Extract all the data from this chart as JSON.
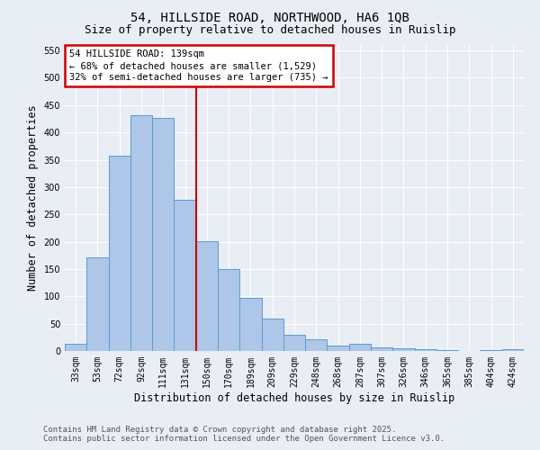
{
  "title_line1": "54, HILLSIDE ROAD, NORTHWOOD, HA6 1QB",
  "title_line2": "Size of property relative to detached houses in Ruislip",
  "xlabel": "Distribution of detached houses by size in Ruislip",
  "ylabel": "Number of detached properties",
  "categories": [
    "33sqm",
    "53sqm",
    "72sqm",
    "92sqm",
    "111sqm",
    "131sqm",
    "150sqm",
    "170sqm",
    "189sqm",
    "209sqm",
    "229sqm",
    "248sqm",
    "268sqm",
    "287sqm",
    "307sqm",
    "326sqm",
    "346sqm",
    "365sqm",
    "385sqm",
    "404sqm",
    "424sqm"
  ],
  "values": [
    14,
    172,
    357,
    432,
    427,
    277,
    201,
    150,
    98,
    60,
    29,
    22,
    10,
    13,
    7,
    5,
    4,
    1,
    0,
    1,
    4
  ],
  "bar_color": "#aec6e8",
  "bar_edge_color": "#5b9bd5",
  "vline_x": 5.5,
  "vline_color": "#cc0000",
  "ylim": [
    0,
    560
  ],
  "yticks": [
    0,
    50,
    100,
    150,
    200,
    250,
    300,
    350,
    400,
    450,
    500,
    550
  ],
  "annotation_title": "54 HILLSIDE ROAD: 139sqm",
  "annotation_line2": "← 68% of detached houses are smaller (1,529)",
  "annotation_line3": "32% of semi-detached houses are larger (735) →",
  "annotation_box_color": "#cc0000",
  "annotation_bg": "#ffffff",
  "footnote1": "Contains HM Land Registry data © Crown copyright and database right 2025.",
  "footnote2": "Contains public sector information licensed under the Open Government Licence v3.0.",
  "bg_color": "#e8eef4",
  "plot_bg_color": "#e8eef4",
  "grid_color": "#ffffff",
  "title_fontsize": 10,
  "subtitle_fontsize": 9,
  "axis_label_fontsize": 8.5,
  "tick_fontsize": 7,
  "annotation_fontsize": 7.5,
  "footnote_fontsize": 6.5
}
